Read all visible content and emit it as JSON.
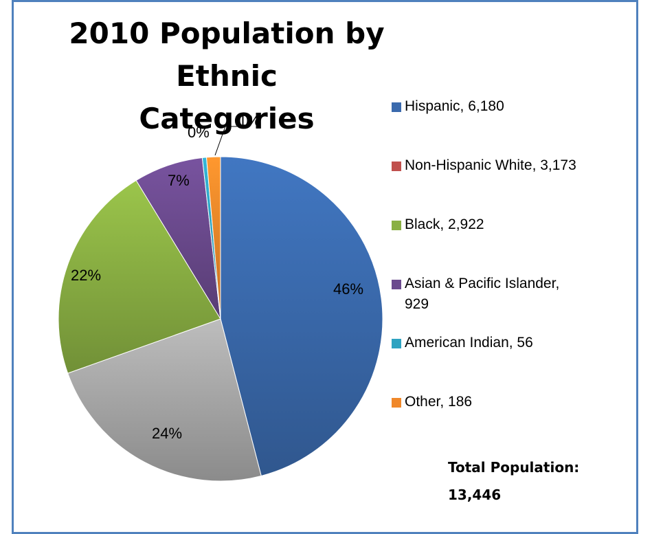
{
  "chart_data": {
    "type": "pie",
    "title": "2010 Population by Ethnic Categories",
    "title_lines": [
      "2010 Population by Ethnic",
      "Categories"
    ],
    "slices": [
      {
        "name": "Hispanic",
        "value": 6180,
        "legend_label": "Hispanic, 6,180",
        "legend_lines": [
          "Hispanic, 6,180"
        ],
        "pct_label": "46%",
        "color": "#3a6aad"
      },
      {
        "name": "Non-Hispanic White",
        "value": 3173,
        "legend_label": "Non-Hispanic White, 3,173",
        "legend_lines": [
          "Non-Hispanic White, 3,173"
        ],
        "pct_label": "24%",
        "color": "#c0504d",
        "rendered_color": "#a9a9a9"
      },
      {
        "name": "Black",
        "value": 2922,
        "legend_label": "Black, 2,922",
        "legend_lines": [
          "Black, 2,922"
        ],
        "pct_label": "22%",
        "color": "#8ab043"
      },
      {
        "name": "Asian & Pacific Islander",
        "value": 929,
        "legend_label": "Asian & Pacific Islander, 929",
        "legend_lines": [
          "Asian & Pacific Islander,",
          "929"
        ],
        "pct_label": "7%",
        "color": "#6b4a8e"
      },
      {
        "name": "American Indian",
        "value": 56,
        "legend_label": "American Indian, 56",
        "legend_lines": [
          "American Indian, 56"
        ],
        "pct_label": "0%",
        "color": "#2ea3c1"
      },
      {
        "name": "Other",
        "value": 186,
        "legend_label": "Other, 186",
        "legend_lines": [
          "Other, 186"
        ],
        "pct_label": "1%",
        "color": "#f0882a"
      }
    ],
    "legend_position": "right",
    "start_angle": "12 o'clock",
    "direction": "clockwise"
  },
  "total": {
    "label": "Total Population:",
    "value": "13,446"
  },
  "colors": {
    "border": "#4f81bd",
    "background": "#ffffff"
  }
}
